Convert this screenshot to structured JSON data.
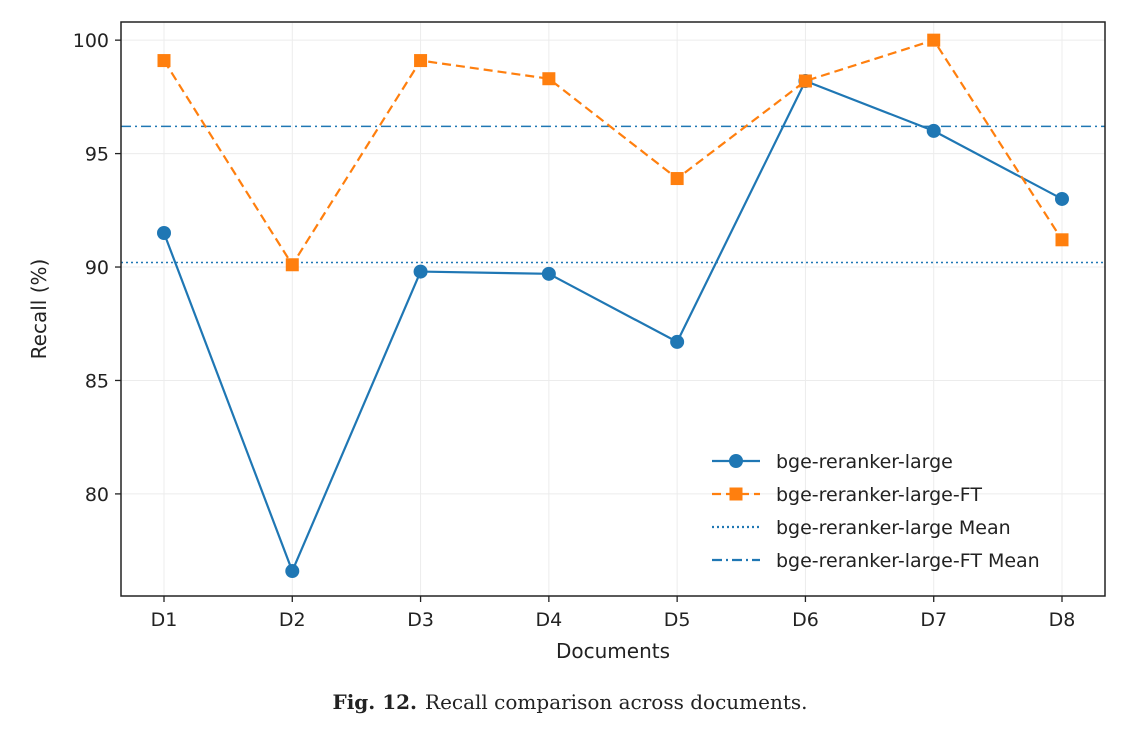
{
  "chart_data": {
    "type": "line",
    "xlabel": "Documents",
    "ylabel": "Recall (%)",
    "categories": [
      "D1",
      "D2",
      "D3",
      "D4",
      "D5",
      "D6",
      "D7",
      "D8"
    ],
    "ylim": [
      75.5,
      100.8
    ],
    "yticks": [
      80,
      85,
      90,
      95,
      100
    ],
    "grid": true,
    "legend_position": "lower-right",
    "series": [
      {
        "name": "bge-reranker-large",
        "values": [
          91.5,
          76.6,
          89.8,
          89.7,
          86.7,
          98.2,
          96.0,
          93.0
        ],
        "color": "#1f77b4",
        "style": "solid",
        "marker": "circle"
      },
      {
        "name": "bge-reranker-large-FT",
        "values": [
          99.1,
          90.1,
          99.1,
          98.3,
          93.9,
          98.2,
          100.0,
          91.2
        ],
        "color": "#ff7f0e",
        "style": "dashed",
        "marker": "square"
      }
    ],
    "reference_lines": [
      {
        "name": "bge-reranker-large Mean",
        "value": 90.2,
        "color": "#1f77b4",
        "style": "dotted"
      },
      {
        "name": "bge-reranker-large-FT Mean",
        "value": 96.2,
        "color": "#1f77b4",
        "style": "dashdot"
      }
    ]
  },
  "caption": {
    "label": "Fig. 12.",
    "text": "Recall comparison across documents."
  }
}
